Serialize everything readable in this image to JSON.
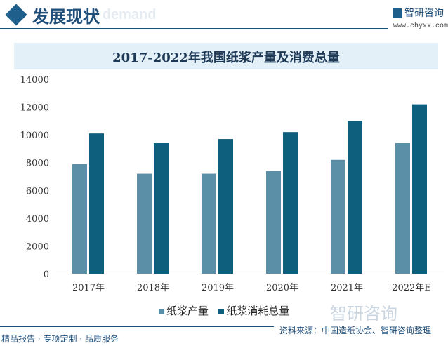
{
  "header": {
    "title": "发展现状",
    "ghost_text": "d demand",
    "logo_text": "智研咨询",
    "logo_url": "www.chyxx.com"
  },
  "footer": {
    "left": "精品报告 · 专项定制 · 品质服务",
    "source": "资料来源：中国造纸协会、智研咨询整理",
    "watermark": "智研咨询"
  },
  "colors": {
    "production": "#5b8fa8",
    "consumption": "#0e5e7e",
    "accent": "#1f4e79"
  },
  "chart_data": {
    "type": "bar",
    "title": "2017-2022年我国纸浆产量及消费总量",
    "categories": [
      "2017年",
      "2018年",
      "2019年",
      "2020年",
      "2021年",
      "2022年E"
    ],
    "series": [
      {
        "name": "纸浆产量",
        "values": [
          7900,
          7200,
          7200,
          7400,
          8200,
          9400
        ]
      },
      {
        "name": "纸浆消耗总量",
        "values": [
          10100,
          9400,
          9700,
          10200,
          11000,
          12200
        ]
      }
    ],
    "ylim": [
      0,
      14000
    ],
    "yticks": [
      0,
      2000,
      4000,
      6000,
      8000,
      10000,
      12000,
      14000
    ],
    "grid": false,
    "legend": "bottom"
  }
}
